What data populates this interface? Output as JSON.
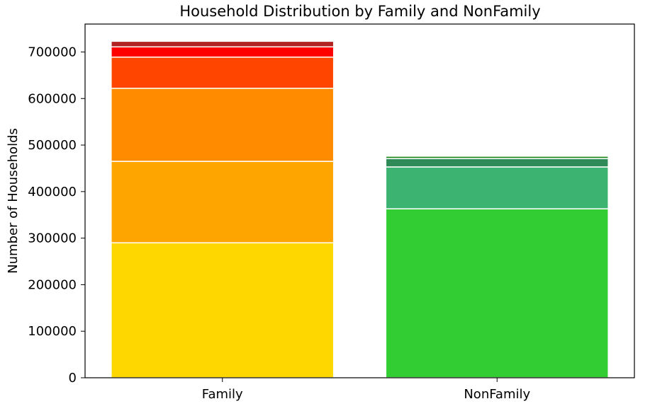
{
  "chart_data": {
    "type": "bar",
    "stacked": true,
    "title": "Household Distribution by Family and NonFamily",
    "xlabel": "",
    "ylabel": "Number of Households",
    "ylim": [
      0,
      760000
    ],
    "y_ticks": [
      0,
      100000,
      200000,
      300000,
      400000,
      500000,
      600000,
      700000
    ],
    "y_tick_labels": [
      "0",
      "100000",
      "200000",
      "300000",
      "400000",
      "500000",
      "600000",
      "700000"
    ],
    "categories": [
      "Family",
      "NonFamily"
    ],
    "grid": false,
    "legend": "none",
    "stacks": [
      {
        "category": "Family",
        "segments": [
          {
            "value": 290000,
            "color": "#FFD700"
          },
          {
            "value": 175000,
            "color": "#FFA500"
          },
          {
            "value": 157000,
            "color": "#FF8C00"
          },
          {
            "value": 67000,
            "color": "#FF4500"
          },
          {
            "value": 22000,
            "color": "#FF0000"
          },
          {
            "value": 12000,
            "color": "#B22222"
          }
        ]
      },
      {
        "category": "NonFamily",
        "segments": [
          {
            "value": 363000,
            "color": "#32CD32"
          },
          {
            "value": 90000,
            "color": "#3CB371"
          },
          {
            "value": 18000,
            "color": "#2E8B57"
          },
          {
            "value": 5000,
            "color": "#228B22"
          }
        ]
      }
    ]
  }
}
